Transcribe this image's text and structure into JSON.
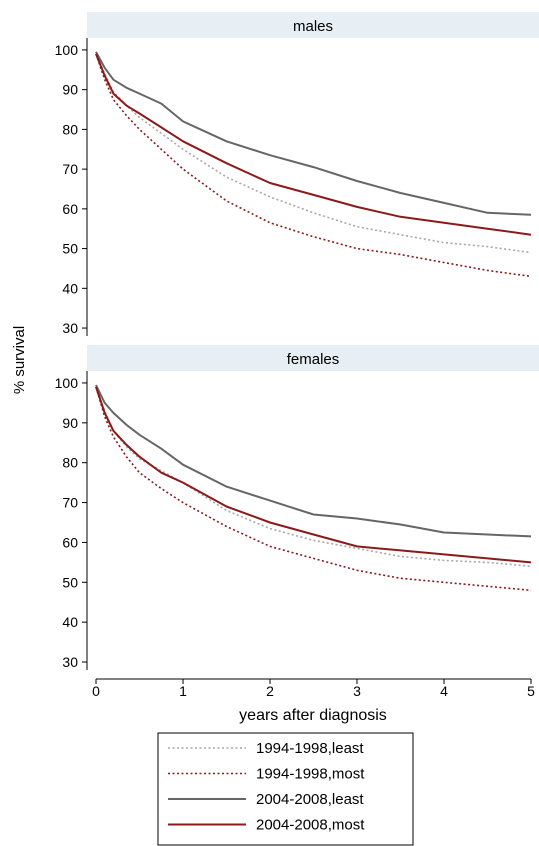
{
  "chart_data": {
    "type": "line",
    "ylabel": "% survival",
    "xlabel": "years after diagnosis",
    "xlim": [
      0,
      5
    ],
    "ylim": [
      28,
      103
    ],
    "x_ticks": [
      0,
      1,
      2,
      3,
      4,
      5
    ],
    "y_ticks": [
      30,
      40,
      50,
      60,
      70,
      80,
      90,
      100
    ],
    "grid": false,
    "legend_position": "bottom",
    "legend": [
      {
        "label": "1994-1998,least",
        "color": "#a8a8a8",
        "style": "dotted"
      },
      {
        "label": "1994-1998,most",
        "color": "#8b1a1a",
        "style": "dotted"
      },
      {
        "label": "2004-2008,least",
        "color": "#666666",
        "style": "solid"
      },
      {
        "label": "2004-2008,most",
        "color": "#8b1a1a",
        "style": "solid"
      }
    ],
    "panels": [
      {
        "title": "males",
        "series": [
          {
            "name": "1994-1998,least",
            "points": [
              [
                0,
                99
              ],
              [
                0.1,
                94
              ],
              [
                0.2,
                89.5
              ],
              [
                0.35,
                86
              ],
              [
                0.5,
                83
              ],
              [
                0.75,
                79
              ],
              [
                1,
                75
              ],
              [
                1.5,
                68
              ],
              [
                2,
                63
              ],
              [
                2.5,
                59
              ],
              [
                3,
                55.5
              ],
              [
                3.5,
                53.5
              ],
              [
                4,
                51.5
              ],
              [
                4.5,
                50.5
              ],
              [
                5,
                49
              ]
            ]
          },
          {
            "name": "1994-1998,most",
            "points": [
              [
                0,
                99
              ],
              [
                0.1,
                92.5
              ],
              [
                0.2,
                87.5
              ],
              [
                0.35,
                83.5
              ],
              [
                0.5,
                80
              ],
              [
                0.75,
                75
              ],
              [
                1,
                70
              ],
              [
                1.5,
                62
              ],
              [
                2,
                56.5
              ],
              [
                2.5,
                53
              ],
              [
                3,
                50
              ],
              [
                3.5,
                48.5
              ],
              [
                4,
                46.5
              ],
              [
                4.5,
                44.5
              ],
              [
                5,
                43
              ]
            ]
          },
          {
            "name": "2004-2008,least",
            "points": [
              [
                0,
                99.5
              ],
              [
                0.1,
                95.5
              ],
              [
                0.2,
                92.5
              ],
              [
                0.35,
                90.5
              ],
              [
                0.5,
                89
              ],
              [
                0.75,
                86.5
              ],
              [
                1,
                82
              ],
              [
                1.5,
                77
              ],
              [
                2,
                73.5
              ],
              [
                2.5,
                70.5
              ],
              [
                3,
                67
              ],
              [
                3.5,
                64
              ],
              [
                4,
                61.5
              ],
              [
                4.5,
                59
              ],
              [
                5,
                58.5
              ]
            ]
          },
          {
            "name": "2004-2008,most",
            "points": [
              [
                0,
                99
              ],
              [
                0.1,
                93.5
              ],
              [
                0.2,
                89
              ],
              [
                0.35,
                86
              ],
              [
                0.5,
                84
              ],
              [
                0.75,
                80.5
              ],
              [
                1,
                77
              ],
              [
                1.5,
                71.5
              ],
              [
                2,
                66.5
              ],
              [
                2.5,
                63.5
              ],
              [
                3,
                60.5
              ],
              [
                3.5,
                58
              ],
              [
                4,
                56.5
              ],
              [
                4.5,
                55
              ],
              [
                5,
                53.5
              ]
            ]
          }
        ]
      },
      {
        "title": "females",
        "series": [
          {
            "name": "1994-1998,least",
            "points": [
              [
                0,
                99
              ],
              [
                0.1,
                93
              ],
              [
                0.2,
                88
              ],
              [
                0.35,
                84
              ],
              [
                0.5,
                81
              ],
              [
                0.75,
                78
              ],
              [
                1,
                75
              ],
              [
                1.5,
                68
              ],
              [
                2,
                63.5
              ],
              [
                2.5,
                60.5
              ],
              [
                3,
                58.5
              ],
              [
                3.5,
                56.5
              ],
              [
                4,
                55.5
              ],
              [
                4.5,
                55
              ],
              [
                5,
                54
              ]
            ]
          },
          {
            "name": "1994-1998,most",
            "points": [
              [
                0,
                99
              ],
              [
                0.1,
                91.5
              ],
              [
                0.2,
                86.5
              ],
              [
                0.35,
                81.5
              ],
              [
                0.5,
                77.5
              ],
              [
                0.75,
                73.5
              ],
              [
                1,
                70
              ],
              [
                1.5,
                64
              ],
              [
                2,
                59
              ],
              [
                2.5,
                56
              ],
              [
                3,
                53
              ],
              [
                3.5,
                51
              ],
              [
                4,
                50
              ],
              [
                4.5,
                49
              ],
              [
                5,
                48
              ]
            ]
          },
          {
            "name": "2004-2008,least",
            "points": [
              [
                0,
                99.5
              ],
              [
                0.1,
                95
              ],
              [
                0.2,
                92.5
              ],
              [
                0.35,
                89.5
              ],
              [
                0.5,
                87
              ],
              [
                0.75,
                83.5
              ],
              [
                1,
                79.5
              ],
              [
                1.5,
                74
              ],
              [
                2,
                70.5
              ],
              [
                2.5,
                67
              ],
              [
                3,
                66
              ],
              [
                3.5,
                64.5
              ],
              [
                4,
                62.5
              ],
              [
                4.5,
                62
              ],
              [
                5,
                61.5
              ]
            ]
          },
          {
            "name": "2004-2008,most",
            "points": [
              [
                0,
                99
              ],
              [
                0.1,
                92.5
              ],
              [
                0.2,
                88
              ],
              [
                0.35,
                84.5
              ],
              [
                0.5,
                81.5
              ],
              [
                0.75,
                77.5
              ],
              [
                1,
                75
              ],
              [
                1.5,
                69
              ],
              [
                2,
                65
              ],
              [
                2.5,
                62
              ],
              [
                3,
                59
              ],
              [
                3.5,
                58
              ],
              [
                4,
                57
              ],
              [
                4.5,
                56
              ],
              [
                5,
                55
              ]
            ]
          }
        ]
      }
    ]
  }
}
